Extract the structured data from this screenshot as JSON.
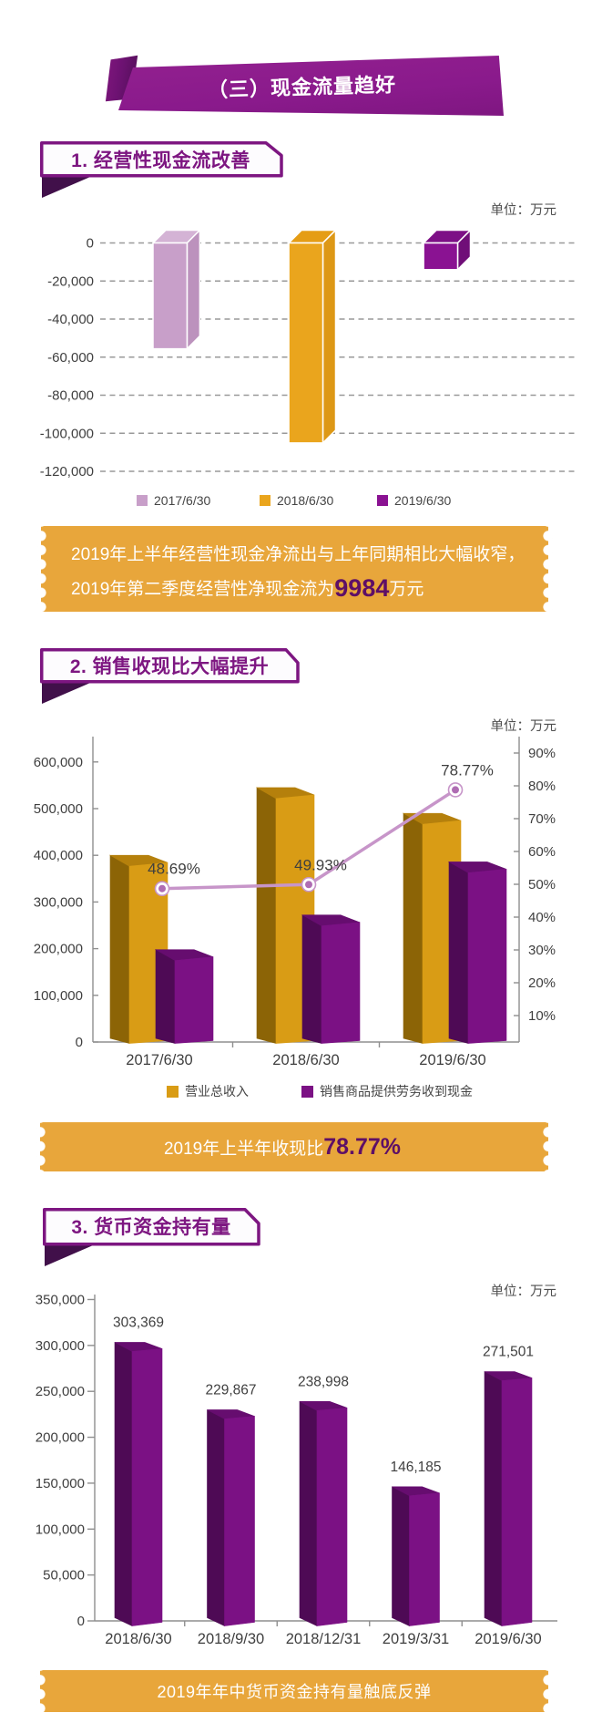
{
  "banner": {
    "title": "（三）现金流量趋好"
  },
  "sections": [
    {
      "heading": "1. 经营性现金流改善",
      "unit": "单位：万元"
    },
    {
      "heading": "2. 销售收现比大幅提升",
      "unit": "单位：万元"
    },
    {
      "heading": "3. 货币资金持有量",
      "unit": "单位：万元"
    }
  ],
  "callouts": [
    {
      "line1": "2019年上半年经营性现金净流出与上年同期相比大幅收窄，",
      "line2_prefix": "2019年第二季度经营性净现金流为",
      "highlight": "9984",
      "line2_suffix": "万元"
    },
    {
      "prefix": "2019年上半年收现比",
      "highlight": "78.77%"
    },
    {
      "text": "2019年年中货币资金持有量触底反弹"
    }
  ],
  "chart_data": [
    {
      "type": "bar",
      "title": "1. 经营性现金流改善",
      "unit": "单位：万元",
      "categories": [
        "2017/6/30",
        "2018/6/30",
        "2019/6/30"
      ],
      "values": [
        -55600,
        -105100,
        -14000
      ],
      "ylim": [
        -120000,
        0
      ],
      "ytick_step": 20000,
      "ytick_labels": [
        "0",
        "-20,000",
        "-40,000",
        "-60,000",
        "-80,000",
        "-100,000",
        "-120,000"
      ],
      "grid": "dashed-horizontal",
      "legend_position": "bottom",
      "legend": [
        {
          "label": "2017/6/30",
          "color": "#c89fc9"
        },
        {
          "label": "2018/6/30",
          "color": "#eaa51d"
        },
        {
          "label": "2019/6/30",
          "color": "#8a1292"
        }
      ],
      "bar_faces": [
        {
          "front": "#c89fc9",
          "side": "#bc92bd",
          "top": "#d4b3d5"
        },
        {
          "front": "#eaa51d",
          "side": "#dd9816",
          "top": "#e59d15"
        },
        {
          "front": "#8a1292",
          "side": "#700e78",
          "top": "#7d1086"
        }
      ]
    },
    {
      "type": "bar+line",
      "title": "2. 销售收现比大幅提升",
      "unit": "单位：万元",
      "categories": [
        "2017/6/30",
        "2018/6/30",
        "2019/6/30"
      ],
      "series": [
        {
          "name": "营业总收入",
          "type": "bar",
          "axis": "left",
          "values": [
            400000,
            545000,
            490000
          ],
          "faces": {
            "front": "#d99c15",
            "side": "#8c6406",
            "top": "#b5800c"
          }
        },
        {
          "name": "销售商品提供劳务收到现金",
          "type": "bar",
          "axis": "left",
          "values": [
            198000,
            272000,
            386000
          ],
          "faces": {
            "front": "#7b1184",
            "side": "#4e0a55",
            "top": "#660d6f"
          }
        },
        {
          "name": "收现比",
          "type": "line",
          "axis": "right",
          "values": [
            48.69,
            49.93,
            78.77
          ],
          "point_labels": [
            "48.69%",
            "49.93%",
            "78.77%"
          ],
          "color": "#c795c9"
        }
      ],
      "ylim_left": [
        0,
        600000
      ],
      "ytick_labels_left": [
        "0",
        "100,000",
        "200,000",
        "300,000",
        "400,000",
        "500,000",
        "600,000"
      ],
      "ytick_labels_right": [
        "10%",
        "20%",
        "30%",
        "40%",
        "50%",
        "60%",
        "70%",
        "80%",
        "90%"
      ],
      "grid": "none",
      "legend_position": "bottom",
      "legend": [
        {
          "label": "营业总收入",
          "color": "#d99c15"
        },
        {
          "label": "销售商品提供劳务收到现金",
          "color": "#7b1184"
        }
      ]
    },
    {
      "type": "bar",
      "title": "3. 货币资金持有量",
      "unit": "单位：万元",
      "categories": [
        "2018/6/30",
        "2018/9/30",
        "2018/12/31",
        "2019/3/31",
        "2019/6/30"
      ],
      "values": [
        303369,
        229867,
        238998,
        146185,
        271501
      ],
      "value_labels": [
        "303,369",
        "229,867",
        "238,998",
        "146,185",
        "271,501"
      ],
      "ylim": [
        0,
        350000
      ],
      "ytick_step": 50000,
      "ytick_labels": [
        "0",
        "50,000",
        "100,000",
        "150,000",
        "200,000",
        "250,000",
        "300,000",
        "350,000"
      ],
      "grid": "none",
      "faces": {
        "front": "#7b1184",
        "side": "#4e0a55",
        "top": "#660d6f"
      }
    }
  ]
}
